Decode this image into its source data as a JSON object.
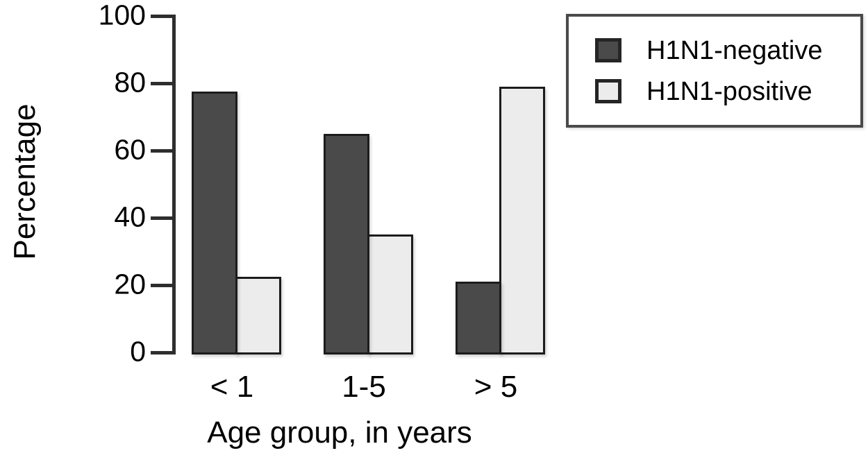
{
  "figure": {
    "background": "#ffffff",
    "text_color": "#000000"
  },
  "chart_data": {
    "type": "bar",
    "title": "",
    "categories": [
      "< 1",
      "1-5",
      "> 5"
    ],
    "series": [
      {
        "name": "H1N1-negative",
        "values": [
          77.5,
          65,
          21
        ],
        "color": "#4a4a4a"
      },
      {
        "name": "H1N1-positive",
        "values": [
          22.5,
          35,
          79
        ],
        "color": "#ececec"
      }
    ],
    "xlabel": "Age group, in years",
    "ylabel": "Percentage",
    "ylim": [
      0,
      100
    ],
    "yticks": [
      0,
      20,
      40,
      60,
      80,
      100
    ],
    "grid": false,
    "legend_position": "top-right",
    "bar_border_color": "#1c1c1c",
    "axis_color": "#2e2e2e"
  }
}
